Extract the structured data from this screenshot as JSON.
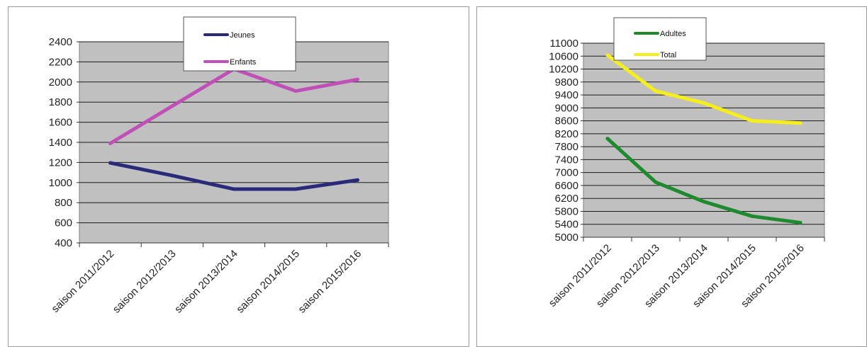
{
  "chart_data": [
    {
      "type": "line",
      "categories": [
        "saison 2011/2012",
        "saison 2012/2013",
        "saison 2013/2014",
        "saison 2014/2015",
        "saison 2015/2016"
      ],
      "series": [
        {
          "name": "Jeunes",
          "values": [
            1195,
            1070,
            935,
            935,
            1025
          ],
          "color": "#2a2a7a"
        },
        {
          "name": "Enfants",
          "values": [
            1390,
            1760,
            2130,
            1910,
            2025
          ],
          "color": "#c050b8"
        }
      ],
      "ylim": [
        400,
        2400
      ],
      "yticks": [
        400,
        600,
        800,
        1000,
        1200,
        1400,
        1600,
        1800,
        2000,
        2200,
        2400
      ],
      "grid": true,
      "plot_background": "#c0c0c0",
      "legend_position": "top"
    },
    {
      "type": "line",
      "categories": [
        "saison 2011/2012",
        "saison 2012/2013",
        "saison 2013/2014",
        "saison 2014/2015",
        "saison 2015/2016"
      ],
      "series": [
        {
          "name": "Adultes",
          "values": [
            8050,
            6700,
            6100,
            5650,
            5450
          ],
          "color": "#1e8a2e"
        },
        {
          "name": "Total",
          "values": [
            10630,
            9520,
            9150,
            8600,
            8530
          ],
          "color": "#f5ee1c"
        }
      ],
      "ylim": [
        5000,
        11000
      ],
      "yticks": [
        5000,
        5400,
        5800,
        6200,
        6600,
        7000,
        7400,
        7800,
        8200,
        8600,
        9000,
        9400,
        9800,
        10200,
        10600,
        11000
      ],
      "grid": true,
      "plot_background": "#c0c0c0",
      "legend_position": "top"
    }
  ]
}
